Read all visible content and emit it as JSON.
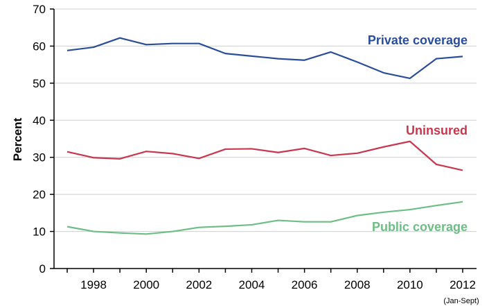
{
  "chart_data": {
    "type": "line",
    "ylabel": "Percent",
    "ylim": [
      0,
      70
    ],
    "yticks": [
      0,
      10,
      20,
      30,
      40,
      50,
      60,
      70
    ],
    "x": [
      1997,
      1998,
      1999,
      2000,
      2001,
      2002,
      2003,
      2004,
      2005,
      2006,
      2007,
      2008,
      2009,
      2010,
      2011,
      2012
    ],
    "xlim": [
      1997,
      2012
    ],
    "xtick_labels": [
      "1998",
      "2000",
      "2002",
      "2004",
      "2006",
      "2008",
      "2010",
      "2012"
    ],
    "x_note": "(Jan-Sept)",
    "grid": "horizontal",
    "series": [
      {
        "name": "Private coverage",
        "color": "#2a4d9b",
        "values": [
          58.8,
          59.7,
          62.2,
          60.4,
          60.7,
          60.7,
          58.0,
          57.3,
          56.6,
          56.2,
          58.4,
          55.7,
          52.8,
          51.3,
          56.6,
          57.2
        ]
      },
      {
        "name": "Uninsured",
        "color": "#c8374e",
        "values": [
          31.5,
          29.9,
          29.6,
          31.6,
          31.0,
          29.7,
          32.2,
          32.3,
          31.3,
          32.4,
          30.5,
          31.1,
          32.8,
          34.3,
          28.1,
          26.5
        ]
      },
      {
        "name": "Public coverage",
        "color": "#6cbf84",
        "values": [
          11.3,
          10.0,
          9.6,
          9.3,
          10.0,
          11.1,
          11.4,
          11.8,
          13.0,
          12.6,
          12.6,
          14.3,
          15.2,
          15.9,
          17.0,
          18.0
        ]
      }
    ]
  }
}
